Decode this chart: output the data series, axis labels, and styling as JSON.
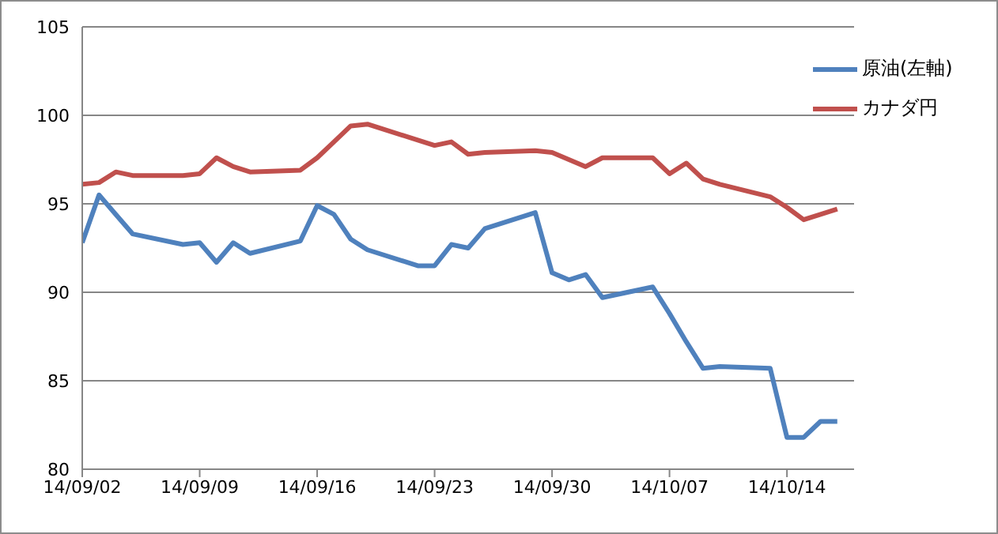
{
  "chart_data": {
    "type": "line",
    "x": [
      "--09-02",
      "--09-03",
      "--09-04",
      "--09-05",
      "--09-08",
      "--09-09",
      "--09-10",
      "--09-11",
      "--09-12",
      "--09-15",
      "--09-16",
      "--09-17",
      "--09-18",
      "--09-19",
      "--09-22",
      "--09-23",
      "--09-24",
      "--09-25",
      "--09-26",
      "--09-29",
      "--09-30",
      "--10-01",
      "--10-02",
      "--10-03",
      "--10-06",
      "--10-07",
      "--10-08",
      "--10-09",
      "--10-10",
      "--10-13",
      "--10-14",
      "--10-15",
      "--10-16",
      "--10-17"
    ],
    "series": [
      {
        "name": "原油(左軸)",
        "color": "#4f81bd",
        "values": [
          92.8,
          95.5,
          94.4,
          93.3,
          92.7,
          92.8,
          91.7,
          92.8,
          92.2,
          92.9,
          94.9,
          94.4,
          93.0,
          92.4,
          91.5,
          91.5,
          92.7,
          92.5,
          93.6,
          94.5,
          91.1,
          90.7,
          91.0,
          89.7,
          90.3,
          88.8,
          87.2,
          85.7,
          85.8,
          85.7,
          81.8,
          81.8,
          82.7,
          82.7
        ]
      },
      {
        "name": "カナダ円",
        "color": "#c0504d",
        "values": [
          96.1,
          96.2,
          96.8,
          96.6,
          96.6,
          96.7,
          97.6,
          97.1,
          96.8,
          96.9,
          97.6,
          98.5,
          99.4,
          99.5,
          98.6,
          98.3,
          98.5,
          97.8,
          97.9,
          98.0,
          97.9,
          97.5,
          97.1,
          97.6,
          97.6,
          96.7,
          97.3,
          96.4,
          96.1,
          95.4,
          94.8,
          94.1,
          94.4,
          94.7
        ]
      }
    ],
    "xlim": [
      "--09-02",
      "--10-18"
    ],
    "xticks": [
      {
        "value": "--09-02",
        "label": "14/09/02"
      },
      {
        "value": "--09-09",
        "label": "14/09/09"
      },
      {
        "value": "--09-16",
        "label": "14/09/16"
      },
      {
        "value": "--09-23",
        "label": "14/09/23"
      },
      {
        "value": "--09-30",
        "label": "14/09/30"
      },
      {
        "value": "--10-07",
        "label": "14/10/07"
      },
      {
        "value": "--10-14",
        "label": "14/10/14"
      }
    ],
    "ylim": [
      80,
      105
    ],
    "yticks": [
      80,
      85,
      90,
      95,
      100,
      105
    ],
    "grid": "y",
    "legend": "top right",
    "marker": "none",
    "line_style": "solid"
  }
}
